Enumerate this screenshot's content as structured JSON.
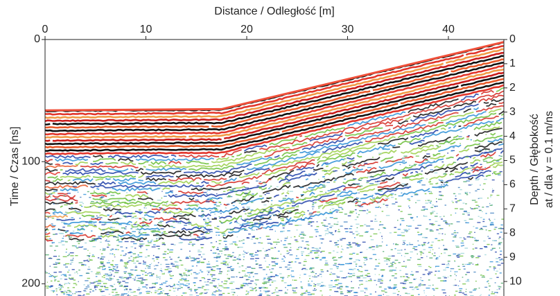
{
  "chart_data": {
    "type": "radargram",
    "title": "Distance / Odległość [m]",
    "y_label": "Time / Czas [ns]",
    "y2_label": "Depth / Głębokość",
    "y2_label_sub": "at / dla  v = 0.1 m/ns",
    "xlim": [
      0,
      45.5
    ],
    "xticks": [
      0,
      10,
      20,
      30,
      40
    ],
    "ylim": [
      0,
      210
    ],
    "yticks": [
      0,
      100,
      200
    ],
    "y2lim": [
      0,
      10.6
    ],
    "y2ticks": [
      0,
      1,
      2,
      3,
      4,
      5,
      6,
      7,
      8,
      9,
      10
    ],
    "surface": {
      "x": [
        0,
        17.5,
        45.5
      ],
      "y": [
        58,
        57,
        2
      ]
    }
  }
}
